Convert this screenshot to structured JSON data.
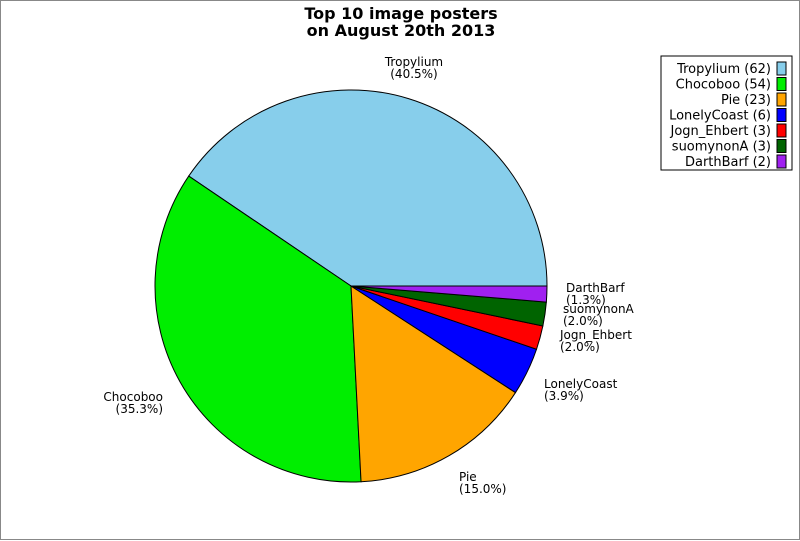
{
  "chart_data": {
    "type": "pie",
    "title_lines": [
      "Top 10 image posters",
      "on August 20th 2013"
    ],
    "slices": [
      {
        "name": "Tropylium",
        "value": 62,
        "percent_label": "(40.5%)",
        "legend_label": "Tropylium (62)",
        "color": "#87ceeb"
      },
      {
        "name": "Chocoboo",
        "value": 54,
        "percent_label": "(35.3%)",
        "legend_label": "Chocoboo (54)",
        "color": "#00ee00"
      },
      {
        "name": "Pie",
        "value": 23,
        "percent_label": "(15.0%)",
        "legend_label": "Pie (23)",
        "color": "#ffa500"
      },
      {
        "name": "LonelyCoast",
        "value": 6,
        "percent_label": "(3.9%)",
        "legend_label": "LonelyCoast (6)",
        "color": "#0000ff"
      },
      {
        "name": "Jogn_Ehbert",
        "value": 3,
        "percent_label": "(2.0%)",
        "legend_label": "Jogn_Ehbert (3)",
        "color": "#ff0000"
      },
      {
        "name": "suomynonA",
        "value": 3,
        "percent_label": "(2.0%)",
        "legend_label": "suomynonA (3)",
        "color": "#006400"
      },
      {
        "name": "DarthBarf",
        "value": 2,
        "percent_label": "(1.3%)",
        "legend_label": "DarthBarf (2)",
        "color": "#a020f0"
      }
    ],
    "legend_position": "top-right"
  }
}
